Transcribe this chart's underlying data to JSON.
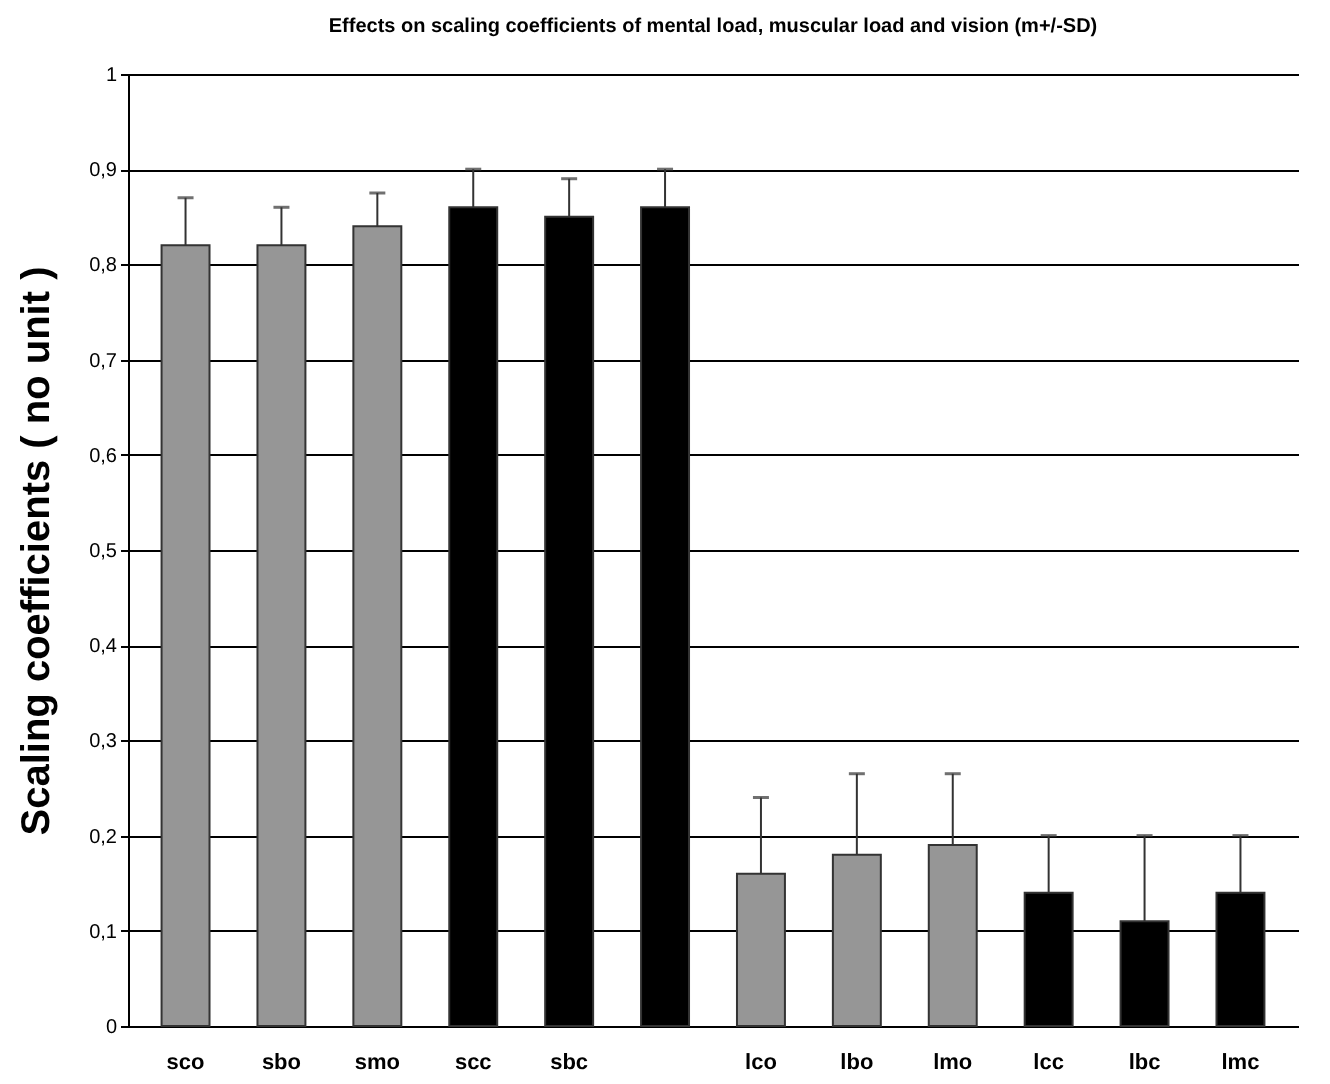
{
  "chart_data": {
    "type": "bar",
    "title": "Effects on scaling coefficients of mental load, muscular load and vision (m+/-SD)",
    "ylabel": "Scaling coefficients ( no unit )",
    "categories": [
      "sco",
      "sbo",
      "smo",
      "scc",
      "sbc",
      null,
      "lco",
      "lbo",
      "lmo",
      "lcc",
      "lbc",
      "lmc"
    ],
    "values": [
      0.82,
      0.82,
      0.84,
      0.86,
      0.85,
      0.86,
      0.16,
      0.18,
      0.19,
      0.14,
      0.11,
      0.14
    ],
    "colors": [
      "#969696",
      "#969696",
      "#969696",
      "#000000",
      "#000000",
      "#000000",
      "#969696",
      "#969696",
      "#969696",
      "#000000",
      "#000000",
      "#000000"
    ],
    "errors": [
      [
        0.82,
        0.87
      ],
      [
        0.82,
        0.86
      ],
      [
        0.84,
        0.875
      ],
      [
        0.86,
        0.9
      ],
      [
        0.85,
        0.89
      ],
      [
        0.86,
        0.9
      ],
      [
        0.16,
        0.24
      ],
      [
        0.18,
        0.265
      ],
      [
        0.19,
        0.265
      ],
      [
        0.14,
        0.2
      ],
      [
        0.11,
        0.2
      ],
      [
        0.14,
        0.2
      ]
    ],
    "ylim": [
      0,
      1
    ],
    "yticks": [
      0,
      {
        "value": 0.1,
        "label": "0,1"
      },
      {
        "value": 0.2,
        "label": "0,2"
      },
      {
        "value": 0.3,
        "label": "0,3"
      },
      {
        "value": 0.4,
        "label": "0,4"
      },
      {
        "value": 0.5,
        "label": "0,5"
      },
      {
        "value": 0.6,
        "label": "0,6"
      },
      {
        "value": 0.7,
        "label": "0,7"
      },
      {
        "value": 0.8,
        "label": "0,8"
      },
      {
        "value": 0.9,
        "label": "0,9"
      },
      1
    ],
    "grid": "y"
  }
}
